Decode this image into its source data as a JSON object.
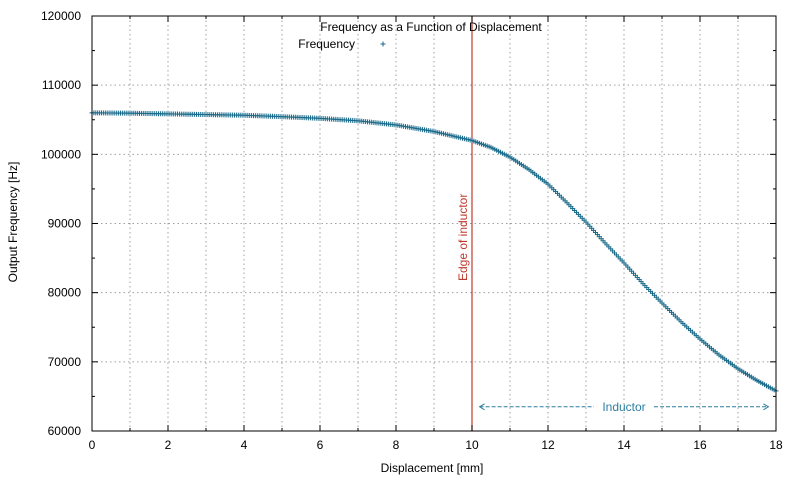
{
  "chart_data": {
    "type": "scatter",
    "title": "Frequency as a Function of Displacement",
    "xlabel": "Displacement [mm]",
    "ylabel": "Output Frequency [Hz]",
    "xlim": [
      0,
      18
    ],
    "ylim": [
      60000,
      120000
    ],
    "x_ticks": [
      "0",
      "2",
      "4",
      "6",
      "8",
      "10",
      "12",
      "14",
      "16",
      "18"
    ],
    "y_ticks": [
      "60000",
      "70000",
      "80000",
      "90000",
      "100000",
      "110000",
      "120000"
    ],
    "grid": true,
    "legend": {
      "position": "top-center",
      "entries": [
        {
          "label": "Frequency",
          "marker": "+"
        }
      ]
    },
    "series": [
      {
        "name": "Frequency",
        "color": "#1a6b8a",
        "marker": "+",
        "x": [
          0,
          1,
          2,
          3,
          4,
          5,
          6,
          7,
          8,
          9,
          10,
          10.5,
          11,
          11.5,
          12,
          12.5,
          13,
          13.5,
          14,
          14.5,
          15,
          15.5,
          16,
          16.5,
          17,
          17.5,
          18
        ],
        "y": [
          106000,
          105950,
          105850,
          105750,
          105650,
          105450,
          105200,
          104850,
          104250,
          103300,
          102000,
          101000,
          99600,
          97800,
          95700,
          93000,
          90200,
          87200,
          84300,
          81300,
          78500,
          75800,
          73300,
          71000,
          69000,
          67300,
          65800
        ]
      }
    ],
    "annotations": [
      {
        "type": "vertical-line",
        "x": 10,
        "label": "Edge of inductor",
        "color": "#c0392b"
      },
      {
        "type": "double-arrow",
        "x_from": 10.2,
        "x_to": 17.8,
        "y": 63500,
        "label": "Inductor",
        "color": "#2e7ea1"
      }
    ]
  }
}
